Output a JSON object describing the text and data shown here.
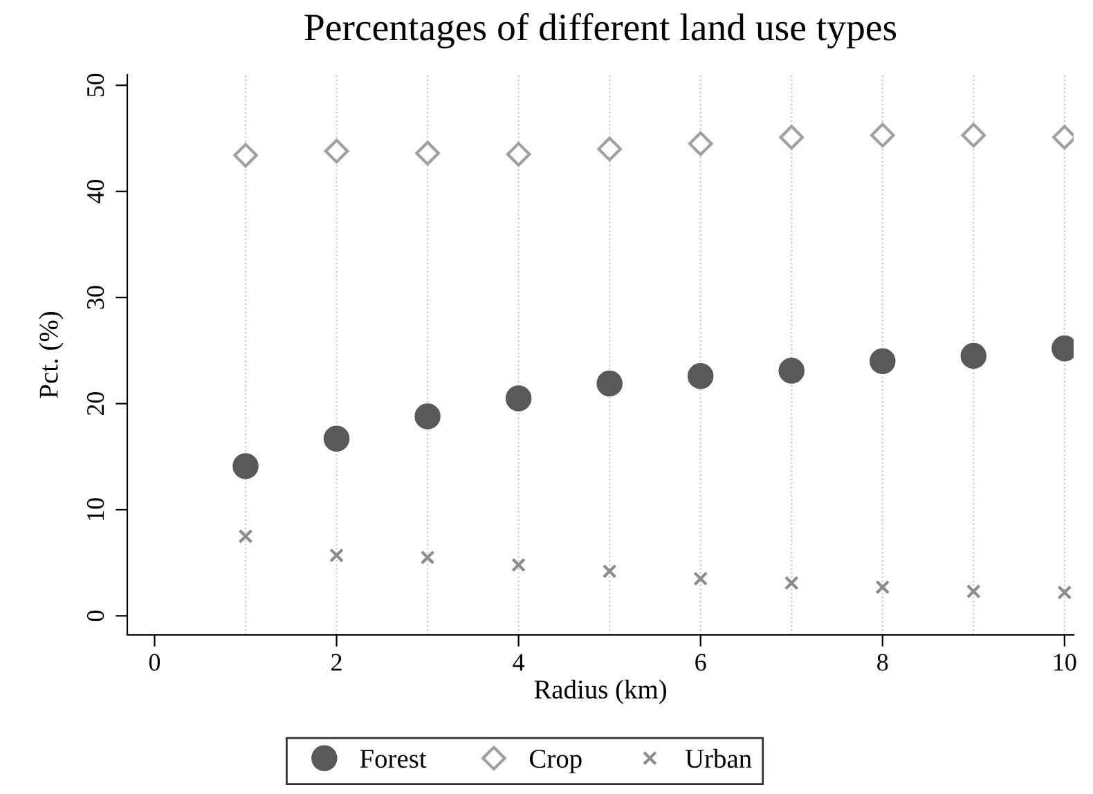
{
  "chart_data": {
    "type": "scatter",
    "title": "Percentages of different land use types",
    "xlabel": "Radius (km)",
    "ylabel": "Pct. (%)",
    "x": [
      1,
      2,
      3,
      4,
      5,
      6,
      7,
      8,
      9,
      10
    ],
    "series": [
      {
        "name": "Forest",
        "color": "#595959",
        "marker": "circle",
        "values": [
          14.1,
          16.7,
          18.8,
          20.5,
          21.9,
          22.6,
          23.1,
          24.0,
          24.5,
          25.2
        ]
      },
      {
        "name": "Crop",
        "color": "#a0a0a0",
        "marker": "diamond",
        "values": [
          43.4,
          43.8,
          43.6,
          43.5,
          44.0,
          44.5,
          45.1,
          45.3,
          45.3,
          45.1
        ]
      },
      {
        "name": "Urban",
        "color": "#8c8c8c",
        "marker": "cross",
        "values": [
          7.5,
          5.7,
          5.5,
          4.8,
          4.2,
          3.5,
          3.1,
          2.7,
          2.3,
          2.2
        ]
      }
    ],
    "xlim": [
      -0.3,
      10.1
    ],
    "xticks": [
      0,
      2,
      4,
      6,
      8,
      10
    ],
    "ylim": [
      -1.8,
      51
    ],
    "yticks": [
      0,
      10,
      20,
      30,
      40,
      50
    ],
    "grid": false,
    "legend": "bottom",
    "ref_lines": [
      {
        "axis": "x",
        "value": 1,
        "color": "#c8c8c8",
        "line_style": "dotted"
      },
      {
        "axis": "x",
        "value": 2,
        "color": "#c8c8c8",
        "line_style": "dotted"
      },
      {
        "axis": "x",
        "value": 3,
        "color": "#c8c8c8",
        "line_style": "dotted"
      },
      {
        "axis": "x",
        "value": 4,
        "color": "#c8c8c8",
        "line_style": "dotted"
      },
      {
        "axis": "x",
        "value": 5,
        "color": "#c8c8c8",
        "line_style": "dotted"
      },
      {
        "axis": "x",
        "value": 6,
        "color": "#c8c8c8",
        "line_style": "dotted"
      },
      {
        "axis": "x",
        "value": 7,
        "color": "#c8c8c8",
        "line_style": "dotted"
      },
      {
        "axis": "x",
        "value": 8,
        "color": "#c8c8c8",
        "line_style": "dotted"
      },
      {
        "axis": "x",
        "value": 9,
        "color": "#c8c8c8",
        "line_style": "dotted"
      },
      {
        "axis": "x",
        "value": 10,
        "color": "#c8c8c8",
        "line_style": "dotted"
      }
    ]
  }
}
